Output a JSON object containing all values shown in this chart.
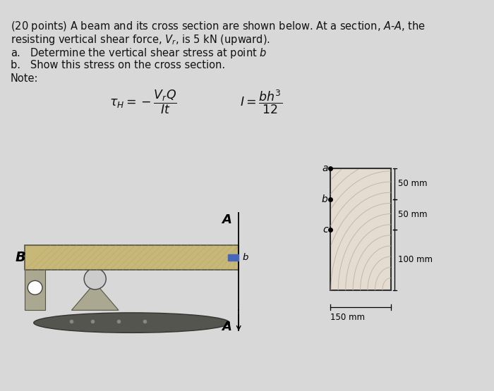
{
  "bg_color": "#d8d8d8",
  "text_color": "#111111",
  "line1": "(20 points) A beam and its cross section are shown below. At a section, $A$-$A$, the",
  "line2": "resisting vertical shear force, $V_r$, is 5 kN (upward).",
  "line3": "a.   Determine the vertical shear stress at point $b$",
  "line4": "b.   Show this stress on the cross section.",
  "line5": "Note:",
  "formula1": "$\\tau_H = -\\dfrac{V_r Q}{It}$",
  "formula2": "$I = \\dfrac{bh^3}{12}$",
  "beam_color": "#c8b878",
  "beam_edge": "#555544",
  "ground_color": "#888880",
  "cross_fill": "#e4dcd0",
  "cross_edge": "#333333",
  "arc_color": "#b8b0a0",
  "dim_50_1": "50 mm",
  "dim_50_2": "50 mm",
  "dim_100": "100 mm",
  "dim_150": "150 mm",
  "pt_a": "a",
  "pt_b": "b",
  "pt_c": "c",
  "label_A": "A",
  "label_B": "B",
  "label_b": "b",
  "blue_marker": "#4466bb"
}
